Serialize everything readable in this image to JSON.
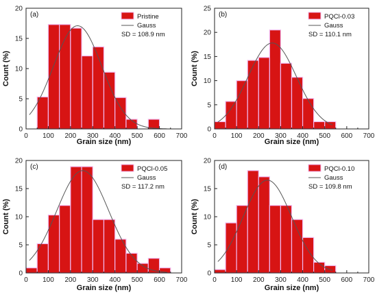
{
  "chart_data": [
    {
      "type": "bar",
      "panel_label": "(a)",
      "x_centers": [
        25,
        75,
        125,
        175,
        225,
        275,
        325,
        375,
        425,
        475,
        525,
        575,
        625
      ],
      "bin_width": 50,
      "values": [
        0,
        5.3,
        17.3,
        17.3,
        16.7,
        12.1,
        13.6,
        9.4,
        5.2,
        1.6,
        0,
        1.6,
        0
      ],
      "gauss": {
        "mu": 232,
        "sigma": 108.9,
        "amp": 17.1
      },
      "legend": {
        "bar": "Pristine",
        "line": "Gauss",
        "sd": "SD = 108.9 nm",
        "position": "top-right"
      },
      "xlabel": "Grain size (nm)",
      "ylabel": "Count (%)",
      "xlim": [
        0,
        700
      ],
      "ylim": [
        0,
        20
      ],
      "xticks": [
        0,
        100,
        200,
        300,
        400,
        500,
        600,
        700
      ],
      "yticks": [
        0,
        5,
        10,
        15,
        20
      ],
      "bar_color": "#d71414",
      "line_color": "#555555"
    },
    {
      "type": "bar",
      "panel_label": "(b)",
      "x_centers": [
        25,
        75,
        125,
        175,
        225,
        275,
        325,
        375,
        425,
        475,
        525
      ],
      "bin_width": 50,
      "values": [
        1.5,
        5.7,
        10.0,
        14.2,
        14.8,
        20.5,
        13.6,
        10.7,
        6.3,
        1.5,
        1.5
      ],
      "gauss": {
        "mu": 262,
        "sigma": 110.1,
        "amp": 17.8
      },
      "legend": {
        "bar": "PQCl-0.03",
        "line": "Gauss",
        "sd": "SD = 110.1 nm",
        "position": "top-right"
      },
      "xlabel": "Grain size (nm)",
      "ylabel": "Count (%)",
      "xlim": [
        0,
        700
      ],
      "ylim": [
        0,
        25
      ],
      "xticks": [
        0,
        100,
        200,
        300,
        400,
        500,
        600,
        700
      ],
      "yticks": [
        0,
        5,
        10,
        15,
        20,
        25
      ],
      "bar_color": "#d71414",
      "line_color": "#555555"
    },
    {
      "type": "bar",
      "panel_label": "(c)",
      "x_centers": [
        25,
        75,
        125,
        175,
        225,
        275,
        325,
        375,
        425,
        475,
        525,
        575,
        625
      ],
      "bin_width": 50,
      "values": [
        0.9,
        5.2,
        10.3,
        12.0,
        18.9,
        18.9,
        9.5,
        9.5,
        6.0,
        3.5,
        1.7,
        2.6,
        0.9
      ],
      "gauss": {
        "mu": 255,
        "sigma": 117.2,
        "amp": 18.2
      },
      "legend": {
        "bar": "PQCl-0.05",
        "line": "Gauss",
        "sd": "SD = 117.2 nm",
        "position": "top-right"
      },
      "xlabel": "Grain size (nm)",
      "ylabel": "Count (%)",
      "xlim": [
        0,
        700
      ],
      "ylim": [
        0,
        20
      ],
      "xticks": [
        0,
        100,
        200,
        300,
        400,
        500,
        600,
        700
      ],
      "yticks": [
        0,
        5,
        10,
        15,
        20
      ],
      "bar_color": "#d71414",
      "line_color": "#555555"
    },
    {
      "type": "bar",
      "panel_label": "(d)",
      "x_centers": [
        25,
        75,
        125,
        175,
        225,
        275,
        325,
        375,
        425,
        475,
        525
      ],
      "bin_width": 50,
      "values": [
        0.6,
        8.9,
        12.0,
        18.2,
        17.1,
        12.0,
        12.0,
        9.5,
        6.3,
        1.9,
        1.3
      ],
      "gauss": {
        "mu": 240,
        "sigma": 109.8,
        "amp": 16.5
      },
      "legend": {
        "bar": "PQCl-0.10",
        "line": "Gauss",
        "sd": "SD = 109.8 nm",
        "position": "top-right"
      },
      "xlabel": "Grain size (nm)",
      "ylabel": "Count (%)",
      "xlim": [
        0,
        700
      ],
      "ylim": [
        0,
        20
      ],
      "xticks": [
        0,
        100,
        200,
        300,
        400,
        500,
        600,
        700
      ],
      "yticks": [
        0,
        5,
        10,
        15,
        20
      ],
      "bar_color": "#d71414",
      "line_color": "#555555"
    }
  ]
}
